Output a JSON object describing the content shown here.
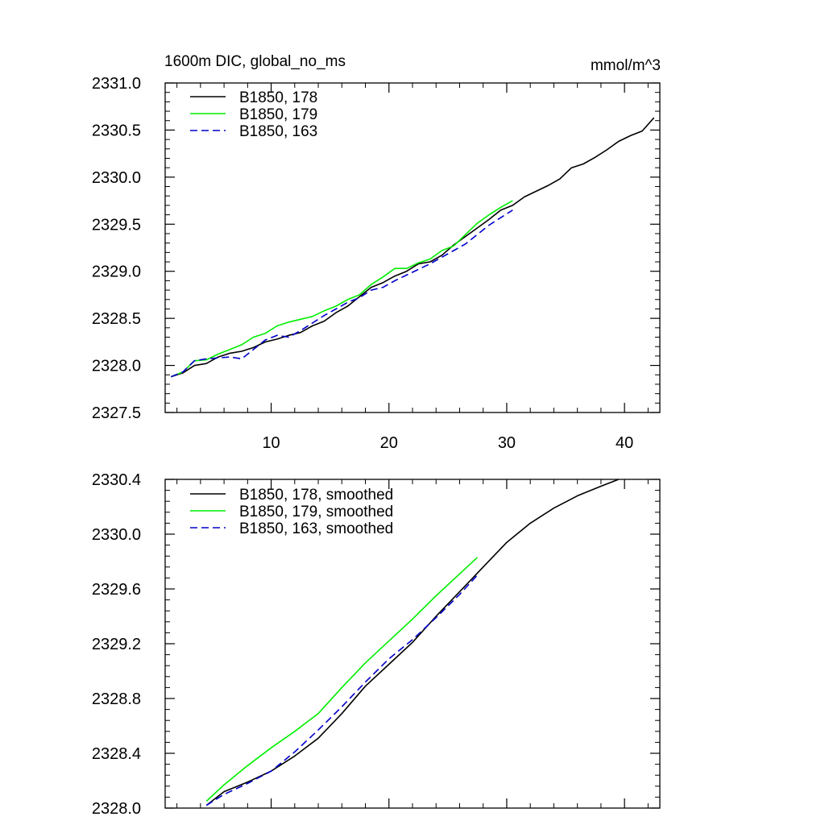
{
  "chart_data": [
    {
      "type": "line",
      "title": "1600m DIC, global_no_ms",
      "units": "mmol/m^3",
      "xlim": [
        1,
        43
      ],
      "ylim": [
        2327.5,
        2331.0
      ],
      "xticks": [
        10,
        20,
        30,
        40
      ],
      "xtick_labels": [
        "10",
        "20",
        "30",
        "40"
      ],
      "yticks": [
        2327.5,
        2328.0,
        2328.5,
        2329.0,
        2329.5,
        2330.0,
        2330.5,
        2331.0
      ],
      "ytick_labels": [
        "2327.5",
        "2328.0",
        "2328.5",
        "2329.0",
        "2329.5",
        "2330.0",
        "2330.5",
        "2331.0"
      ],
      "legend_position": "top-left",
      "series": [
        {
          "name": "B1850, 178",
          "color": "#000000",
          "dash": "solid",
          "x": [
            1.5,
            2.5,
            3.5,
            4.5,
            5.5,
            6.5,
            7.5,
            8.5,
            9.5,
            10.5,
            11.5,
            12.5,
            13.5,
            14.5,
            15.5,
            16.5,
            17.5,
            18.5,
            19.5,
            20.5,
            21.5,
            22.5,
            23.5,
            24.5,
            25.5,
            26.5,
            27.5,
            28.5,
            29.5,
            30.5,
            31.5,
            32.5,
            33.5,
            34.5,
            35.5,
            36.5,
            37.5,
            38.5,
            39.5,
            40.5,
            41.5,
            42.5
          ],
          "y": [
            2327.88,
            2327.92,
            2328.0,
            2328.02,
            2328.09,
            2328.13,
            2328.15,
            2328.19,
            2328.25,
            2328.28,
            2328.32,
            2328.35,
            2328.42,
            2328.47,
            2328.56,
            2328.63,
            2328.73,
            2328.83,
            2328.88,
            2328.95,
            2329.0,
            2329.08,
            2329.1,
            2329.17,
            2329.28,
            2329.37,
            2329.46,
            2329.55,
            2329.65,
            2329.7,
            2329.79,
            2329.85,
            2329.91,
            2329.98,
            2330.1,
            2330.14,
            2330.21,
            2330.29,
            2330.38,
            2330.44,
            2330.49,
            2330.63
          ]
        },
        {
          "name": "B1850, 179",
          "color": "#00ee00",
          "dash": "solid",
          "x": [
            1.5,
            2.5,
            3.5,
            4.5,
            5.5,
            6.5,
            7.5,
            8.5,
            9.5,
            10.5,
            11.5,
            12.5,
            13.5,
            14.5,
            15.5,
            16.5,
            17.5,
            18.5,
            19.5,
            20.5,
            21.5,
            22.5,
            23.5,
            24.5,
            25.5,
            26.5,
            27.5,
            28.5,
            29.5,
            30.5
          ],
          "y": [
            2327.88,
            2327.93,
            2328.05,
            2328.06,
            2328.12,
            2328.17,
            2328.22,
            2328.3,
            2328.34,
            2328.42,
            2328.46,
            2328.49,
            2328.52,
            2328.58,
            2328.63,
            2328.7,
            2328.75,
            2328.86,
            2328.94,
            2329.03,
            2329.03,
            2329.09,
            2329.13,
            2329.22,
            2329.27,
            2329.39,
            2329.51,
            2329.6,
            2329.68,
            2329.75
          ]
        },
        {
          "name": "B1850, 163",
          "color": "#0000cc",
          "dash": "dashed",
          "x": [
            1.5,
            2.5,
            3.5,
            4.5,
            5.5,
            6.5,
            7.5,
            8.5,
            9.5,
            10.5,
            11.5,
            12.5,
            13.5,
            14.5,
            15.5,
            16.5,
            17.5,
            18.5,
            19.5,
            20.5,
            21.5,
            22.5,
            23.5,
            24.5,
            25.5,
            26.5,
            27.5,
            28.5,
            29.5,
            30.5
          ],
          "y": [
            2327.88,
            2327.93,
            2328.05,
            2328.07,
            2328.08,
            2328.09,
            2328.07,
            2328.17,
            2328.27,
            2328.32,
            2328.3,
            2328.37,
            2328.45,
            2328.53,
            2328.6,
            2328.67,
            2328.72,
            2328.8,
            2328.83,
            2328.9,
            2328.96,
            2329.02,
            2329.08,
            2329.15,
            2329.22,
            2329.29,
            2329.39,
            2329.49,
            2329.57,
            2329.65
          ]
        }
      ]
    },
    {
      "type": "line",
      "xlim": [
        1,
        43
      ],
      "ylim": [
        2328.0,
        2330.4
      ],
      "xticks": [
        10,
        20,
        30,
        40
      ],
      "yticks": [
        2328.0,
        2328.4,
        2328.8,
        2329.2,
        2329.6,
        2330.0,
        2330.4
      ],
      "ytick_labels": [
        "2328.0",
        "2328.4",
        "2328.8",
        "2329.2",
        "2329.6",
        "2330.0",
        "2330.4"
      ],
      "legend_position": "top-left",
      "series": [
        {
          "name": "B1850, 178, smoothed",
          "color": "#000000",
          "dash": "solid",
          "x": [
            4.5,
            6,
            8,
            10,
            12,
            14,
            16,
            18,
            20,
            22,
            24,
            26,
            28,
            30,
            32,
            34,
            36,
            38,
            39.5
          ],
          "y": [
            2328.02,
            2328.12,
            2328.19,
            2328.27,
            2328.38,
            2328.51,
            2328.69,
            2328.89,
            2329.05,
            2329.21,
            2329.4,
            2329.58,
            2329.76,
            2329.94,
            2330.08,
            2330.19,
            2330.28,
            2330.35,
            2330.4
          ]
        },
        {
          "name": "B1850, 179, smoothed",
          "color": "#00ee00",
          "dash": "solid",
          "x": [
            4.5,
            6,
            8,
            10,
            12,
            14,
            16,
            18,
            20,
            22,
            24,
            26,
            27.5
          ],
          "y": [
            2328.05,
            2328.17,
            2328.31,
            2328.44,
            2328.56,
            2328.69,
            2328.88,
            2329.06,
            2329.22,
            2329.38,
            2329.55,
            2329.71,
            2329.83
          ]
        },
        {
          "name": "B1850, 163, smoothed",
          "color": "#0000cc",
          "dash": "dashed",
          "x": [
            4.5,
            6,
            8,
            10,
            12,
            14,
            16,
            18,
            20,
            22,
            24,
            26,
            27.5
          ],
          "y": [
            2328.02,
            2328.1,
            2328.18,
            2328.27,
            2328.41,
            2328.57,
            2328.74,
            2328.92,
            2329.09,
            2329.23,
            2329.39,
            2329.56,
            2329.7
          ]
        }
      ]
    }
  ]
}
